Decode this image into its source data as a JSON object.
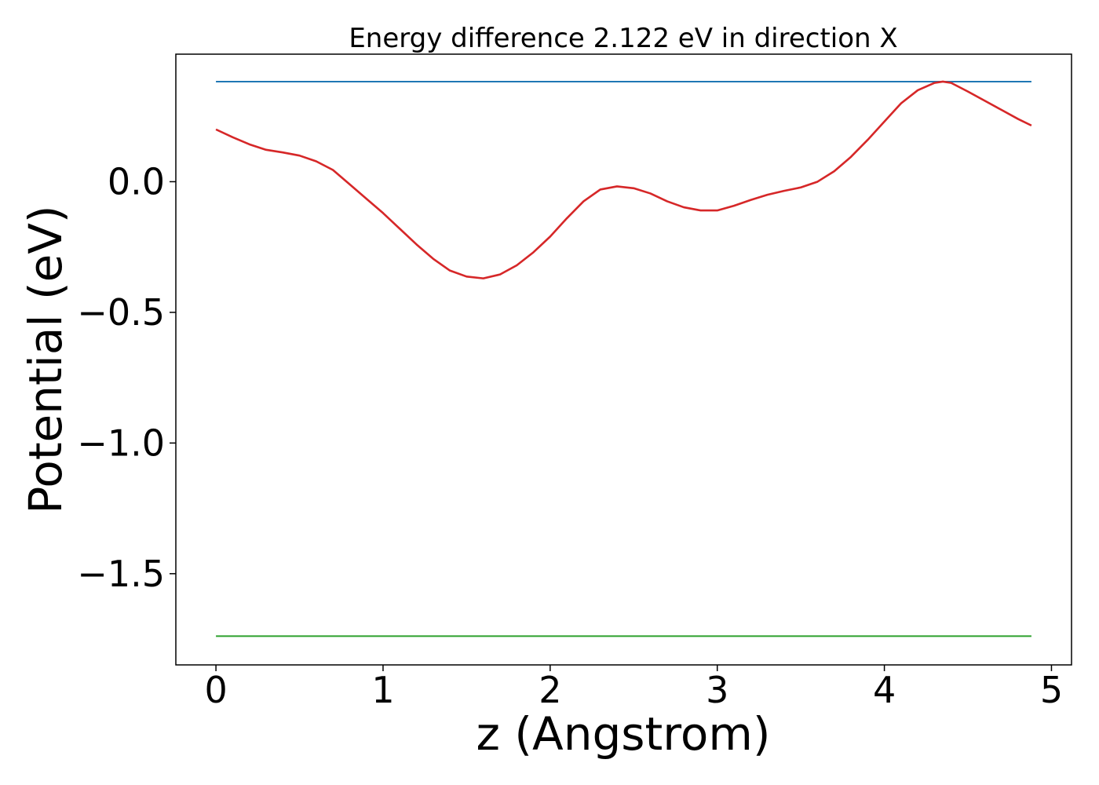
{
  "chart_data": {
    "type": "line",
    "title": "Energy difference 2.122 eV in direction X",
    "xlabel": "z (Angstrom)",
    "ylabel": "Potential (eV)",
    "xlim": [
      -0.24,
      5.12
    ],
    "ylim": [
      -1.849,
      0.488
    ],
    "x_ticks": [
      0,
      1,
      2,
      3,
      4,
      5
    ],
    "x_tick_labels": [
      "0",
      "1",
      "2",
      "3",
      "4",
      "5"
    ],
    "y_ticks": [
      0.0,
      -0.5,
      -1.0,
      -1.5
    ],
    "y_tick_labels": [
      "0.0",
      "−0.5",
      "−1.0",
      "−1.5"
    ],
    "grid": false,
    "series": [
      {
        "color": "#1f77b4",
        "x": [
          0,
          4.88
        ],
        "y": [
          0.383,
          0.383
        ]
      },
      {
        "color": "#d62728",
        "x": [
          0,
          0.1,
          0.2,
          0.3,
          0.4,
          0.5,
          0.6,
          0.7,
          0.8,
          0.9,
          1.0,
          1.1,
          1.2,
          1.3,
          1.4,
          1.5,
          1.6,
          1.7,
          1.8,
          1.9,
          2.0,
          2.1,
          2.2,
          2.3,
          2.4,
          2.5,
          2.6,
          2.7,
          2.8,
          2.9,
          3.0,
          3.1,
          3.2,
          3.3,
          3.4,
          3.5,
          3.6,
          3.7,
          3.8,
          3.9,
          4.0,
          4.1,
          4.2,
          4.3,
          4.35,
          4.4,
          4.5,
          4.6,
          4.7,
          4.8,
          4.88
        ],
        "y": [
          0.2,
          0.17,
          0.143,
          0.122,
          0.112,
          0.1,
          0.078,
          0.045,
          -0.01,
          -0.065,
          -0.12,
          -0.18,
          -0.24,
          -0.295,
          -0.34,
          -0.363,
          -0.37,
          -0.355,
          -0.32,
          -0.27,
          -0.21,
          -0.14,
          -0.075,
          -0.03,
          -0.018,
          -0.025,
          -0.045,
          -0.075,
          -0.098,
          -0.11,
          -0.11,
          -0.092,
          -0.07,
          -0.05,
          -0.035,
          -0.022,
          0.0,
          0.04,
          0.095,
          0.16,
          0.23,
          0.3,
          0.35,
          0.378,
          0.383,
          0.378,
          0.345,
          0.31,
          0.275,
          0.24,
          0.215
        ]
      },
      {
        "color": "#2ca02c",
        "x": [
          0,
          4.88
        ],
        "y": [
          -1.739,
          -1.739
        ]
      }
    ]
  }
}
